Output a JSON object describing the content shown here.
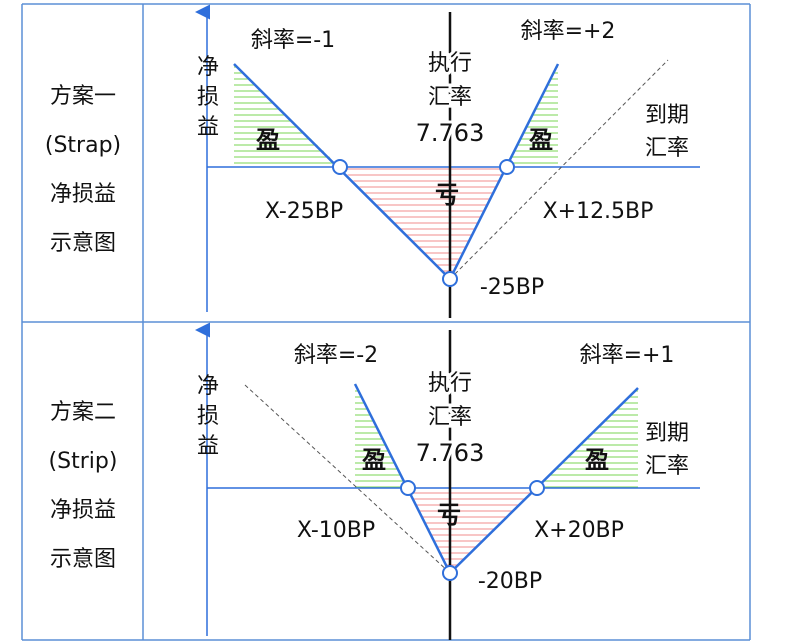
{
  "panels": [
    {
      "label_lines": [
        "方案一",
        "(Strap)",
        "净损益",
        "示意图"
      ],
      "y_axis_label": [
        "净",
        "损",
        "益"
      ],
      "strike_label": [
        "执行",
        "汇率",
        "7.763"
      ],
      "x_axis_label": [
        "到期",
        "汇率"
      ],
      "left_slope": "斜率=-1",
      "right_slope": "斜率=+2",
      "left_breakeven": "X-25BP",
      "right_breakeven": "X+12.5BP",
      "min_value": "-25BP",
      "profit_label": "盈",
      "loss_label": "亏"
    },
    {
      "label_lines": [
        "方案二",
        "(Strip)",
        "净损益",
        "示意图"
      ],
      "y_axis_label": [
        "净",
        "损",
        "益"
      ],
      "strike_label": [
        "执行",
        "汇率",
        "7.763"
      ],
      "x_axis_label": [
        "到期",
        "汇率"
      ],
      "left_slope": "斜率=-2",
      "right_slope": "斜率=+1",
      "left_breakeven": "X-10BP",
      "right_breakeven": "X+20BP",
      "min_value": "-20BP",
      "profit_label": "盈",
      "loss_label": "亏"
    }
  ],
  "colors": {
    "border": "#5b8fd6",
    "payoff_line": "#2f6fdb",
    "axis": "#2f6fdb",
    "profit_hatch": "#8fdc6f",
    "loss_hatch": "#f2a0a0",
    "dashed": "#555555",
    "strike_line": "#111111"
  }
}
